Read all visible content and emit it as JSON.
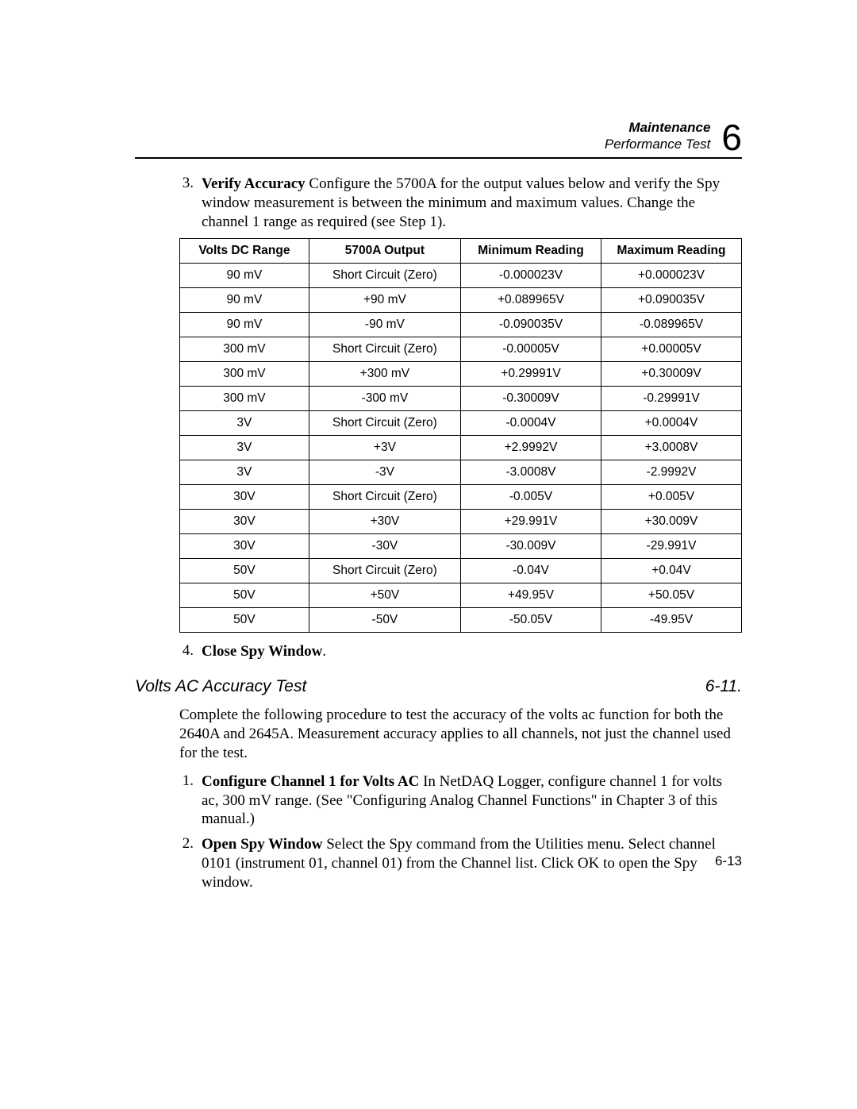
{
  "header": {
    "title_line1": "Maintenance",
    "title_line2": "Performance Test",
    "chapter_number": "6"
  },
  "step3": {
    "number": "3.",
    "bold": "Verify Accuracy",
    "text": "  Configure the 5700A for the output values below and verify the Spy window measurement is between the minimum and maximum values. Change the channel 1 range as required (see Step 1)."
  },
  "table": {
    "columns": [
      "Volts DC Range",
      "5700A Output",
      "Minimum Reading",
      "Maximum Reading"
    ],
    "col_widths": [
      "23%",
      "27%",
      "25%",
      "25%"
    ],
    "rows": [
      [
        "90 mV",
        "Short Circuit (Zero)",
        "-0.000023V",
        "+0.000023V"
      ],
      [
        "90 mV",
        "+90 mV",
        "+0.089965V",
        "+0.090035V"
      ],
      [
        "90 mV",
        "-90 mV",
        "-0.090035V",
        "-0.089965V"
      ],
      [
        "300 mV",
        "Short Circuit (Zero)",
        "-0.00005V",
        "+0.00005V"
      ],
      [
        "300 mV",
        "+300 mV",
        "+0.29991V",
        "+0.30009V"
      ],
      [
        "300 mV",
        "-300 mV",
        "-0.30009V",
        "-0.29991V"
      ],
      [
        "3V",
        "Short Circuit (Zero)",
        "-0.0004V",
        "+0.0004V"
      ],
      [
        "3V",
        "+3V",
        "+2.9992V",
        "+3.0008V"
      ],
      [
        "3V",
        "-3V",
        "-3.0008V",
        "-2.9992V"
      ],
      [
        "30V",
        "Short Circuit (Zero)",
        "-0.005V",
        "+0.005V"
      ],
      [
        "30V",
        "+30V",
        "+29.991V",
        "+30.009V"
      ],
      [
        "30V",
        "-30V",
        "-30.009V",
        "-29.991V"
      ],
      [
        "50V",
        "Short Circuit (Zero)",
        "-0.04V",
        "+0.04V"
      ],
      [
        "50V",
        "+50V",
        "+49.95V",
        "+50.05V"
      ],
      [
        "50V",
        "-50V",
        "-50.05V",
        "-49.95V"
      ]
    ]
  },
  "step4": {
    "number": "4.",
    "bold": "Close Spy Window",
    "text": "."
  },
  "section": {
    "title": "Volts AC Accuracy Test",
    "number": "6-11."
  },
  "intro_para": "Complete the following procedure to test the accuracy of the volts ac function for both the 2640A and 2645A. Measurement accuracy applies to all channels, not just the channel used for the test.",
  "ac_step1": {
    "number": "1.",
    "bold": "Configure Channel 1 for Volts AC",
    "text": "  In NetDAQ Logger, configure channel 1 for volts ac, 300 mV range. (See \"Configuring Analog Channel Functions\" in Chapter 3 of this manual.)"
  },
  "ac_step2": {
    "number": "2.",
    "bold": "Open Spy Window",
    "text": "  Select the Spy command from the Utilities menu. Select channel 0101 (instrument 01, channel 01) from the Channel list. Click OK to open the Spy window."
  },
  "page_number": "6-13"
}
